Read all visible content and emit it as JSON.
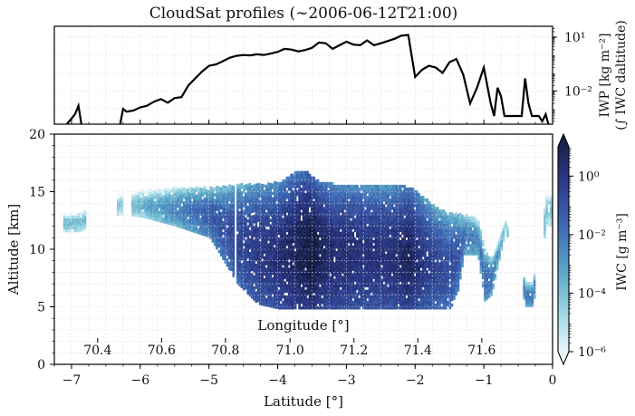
{
  "figure": {
    "title": "CloudSat profiles (∼2006-06-12T21:00)"
  },
  "chart_data": [
    {
      "type": "line",
      "panel": "top",
      "ylabel_line1": "IWP [kg m⁻²]",
      "ylabel_line2": "(∫ IWC daltitude)",
      "yscale": "log",
      "yticks": [
        {
          "value": 10,
          "label": "10¹"
        },
        {
          "value": 0.01,
          "label": "10⁻²"
        }
      ],
      "x": [
        -7.1,
        -6.95,
        -6.9,
        -6.85,
        -6.3,
        -6.25,
        -6.2,
        -6.1,
        -6.0,
        -5.9,
        -5.8,
        -5.7,
        -5.6,
        -5.5,
        -5.4,
        -5.3,
        -5.2,
        -5.1,
        -5.0,
        -4.9,
        -4.8,
        -4.7,
        -4.6,
        -4.5,
        -4.4,
        -4.3,
        -4.2,
        -4.1,
        -4.0,
        -3.9,
        -3.8,
        -3.7,
        -3.6,
        -3.5,
        -3.4,
        -3.3,
        -3.2,
        -3.1,
        -3.0,
        -2.9,
        -2.8,
        -2.7,
        -2.6,
        -2.5,
        -2.4,
        -2.3,
        -2.2,
        -2.1,
        -2.0,
        -1.9,
        -1.8,
        -1.7,
        -1.6,
        -1.5,
        -1.4,
        -1.3,
        -1.2,
        -1.1,
        -1.0,
        -0.9,
        -0.85,
        -0.8,
        -0.75,
        -0.7,
        -0.6,
        -0.45,
        -0.4,
        -0.35,
        -0.3,
        -0.2,
        -0.15,
        -0.1,
        -0.05
      ],
      "y": [
        0.0001,
        0.0005,
        0.0015,
        0.0001,
        0.0001,
        0.001,
        0.0007,
        0.0008,
        0.0012,
        0.0015,
        0.0025,
        0.0035,
        0.0022,
        0.004,
        0.0045,
        0.02,
        0.05,
        0.12,
        0.25,
        0.3,
        0.45,
        0.7,
        0.9,
        1.0,
        0.95,
        1.1,
        1.0,
        1.2,
        1.5,
        2.2,
        2.0,
        1.6,
        1.9,
        2.5,
        5.0,
        4.5,
        2.2,
        3.5,
        5.5,
        3.8,
        3.5,
        6.5,
        3.5,
        4.5,
        6.0,
        8.0,
        12.0,
        13.0,
        0.06,
        0.15,
        0.25,
        0.2,
        0.1,
        0.4,
        0.6,
        0.08,
        0.002,
        0.015,
        0.2,
        0.002,
        0.0004,
        0.015,
        0.005,
        0.0004,
        0.0004,
        0.0004,
        0.05,
        0.002,
        0.0004,
        0.0004,
        0.0002,
        0.0005,
        0.0001
      ]
    },
    {
      "type": "heatmap",
      "panel": "bottom",
      "xlabel": "Latitude [°]",
      "ylabel": "Altitude [km]",
      "xlim": [
        -7.25,
        0
      ],
      "ylim": [
        0,
        20
      ],
      "xticks": [
        -7,
        -6,
        -5,
        -4,
        -3,
        -2,
        -1,
        0
      ],
      "xtick_labels": [
        "−7",
        "−6",
        "−5",
        "−4",
        "−3",
        "−2",
        "−1",
        "0"
      ],
      "yticks": [
        0,
        5,
        10,
        15,
        20
      ],
      "secondary_xlabel": "Longitude [°]",
      "secondary_xticks": [
        {
          "lat": -6.62,
          "label": "70.4"
        },
        {
          "lat": -5.69,
          "label": "70.6"
        },
        {
          "lat": -4.76,
          "label": "70.8"
        },
        {
          "lat": -3.82,
          "label": "71.0"
        },
        {
          "lat": -2.89,
          "label": "71.2"
        },
        {
          "lat": -1.96,
          "label": "71.4"
        },
        {
          "lat": -1.03,
          "label": "71.6"
        }
      ],
      "colorbar": {
        "label": "IWC [g m⁻³]",
        "scale": "log",
        "range": [
          1e-06,
          10
        ],
        "ticks": [
          {
            "value": 1,
            "label": "10⁰"
          },
          {
            "value": 0.01,
            "label": "10⁻²"
          },
          {
            "value": 0.0001,
            "label": "10⁻⁴"
          },
          {
            "value": 1e-06,
            "label": "10⁻⁶"
          }
        ],
        "colors": [
          "#ffffff",
          "#a8dde8",
          "#5ba8c8",
          "#3f68b4",
          "#2c3a88",
          "#141a3c"
        ]
      },
      "profile": {
        "lat": [
          -7.1,
          -6.9,
          -6.3,
          -6.0,
          -5.5,
          -5.0,
          -4.6,
          -4.3,
          -4.0,
          -3.8,
          -3.6,
          -3.5,
          -3.4,
          -3.2,
          -3.0,
          -2.8,
          -2.6,
          -2.4,
          -2.2,
          -2.1,
          -2.0,
          -1.9,
          -1.7,
          -1.5,
          -1.4,
          -1.3,
          -1.1,
          -1.0,
          -0.9,
          -0.7,
          -0.4,
          -0.3,
          -0.1,
          -0.05
        ],
        "cloud_base_km": [
          11.5,
          11.5,
          13.0,
          12.8,
          12.0,
          11.0,
          7.0,
          5.2,
          4.8,
          4.8,
          4.8,
          4.8,
          4.8,
          4.8,
          4.8,
          4.8,
          4.8,
          4.8,
          4.8,
          4.8,
          4.8,
          4.8,
          4.8,
          4.8,
          6.0,
          9.5,
          9.5,
          5.5,
          6.0,
          11.5,
          5.0,
          5.0,
          12.0,
          12.0
        ],
        "cloud_top_km": [
          13.0,
          13.2,
          14.8,
          15.0,
          15.2,
          15.3,
          15.5,
          15.6,
          15.7,
          16.5,
          16.8,
          16.2,
          15.8,
          15.6,
          15.6,
          15.6,
          15.5,
          15.4,
          15.4,
          15.3,
          15.0,
          14.5,
          13.5,
          13.0,
          13.0,
          13.0,
          12.5,
          10.0,
          9.0,
          12.5,
          7.0,
          7.0,
          15.0,
          15.0
        ],
        "log10_iwc_mean": [
          -4.5,
          -4.5,
          -4.8,
          -4.2,
          -3.2,
          -2.3,
          -1.6,
          -1.2,
          -0.8,
          -0.4,
          0.0,
          0.2,
          -0.3,
          -0.7,
          -0.8,
          -0.9,
          -0.9,
          -0.9,
          -0.6,
          -0.3,
          -0.7,
          -1.1,
          -1.5,
          -1.8,
          -2.0,
          -2.8,
          -3.2,
          -2.5,
          -2.8,
          -4.5,
          -3.0,
          -3.0,
          -4.8,
          -4.8
        ]
      }
    }
  ]
}
